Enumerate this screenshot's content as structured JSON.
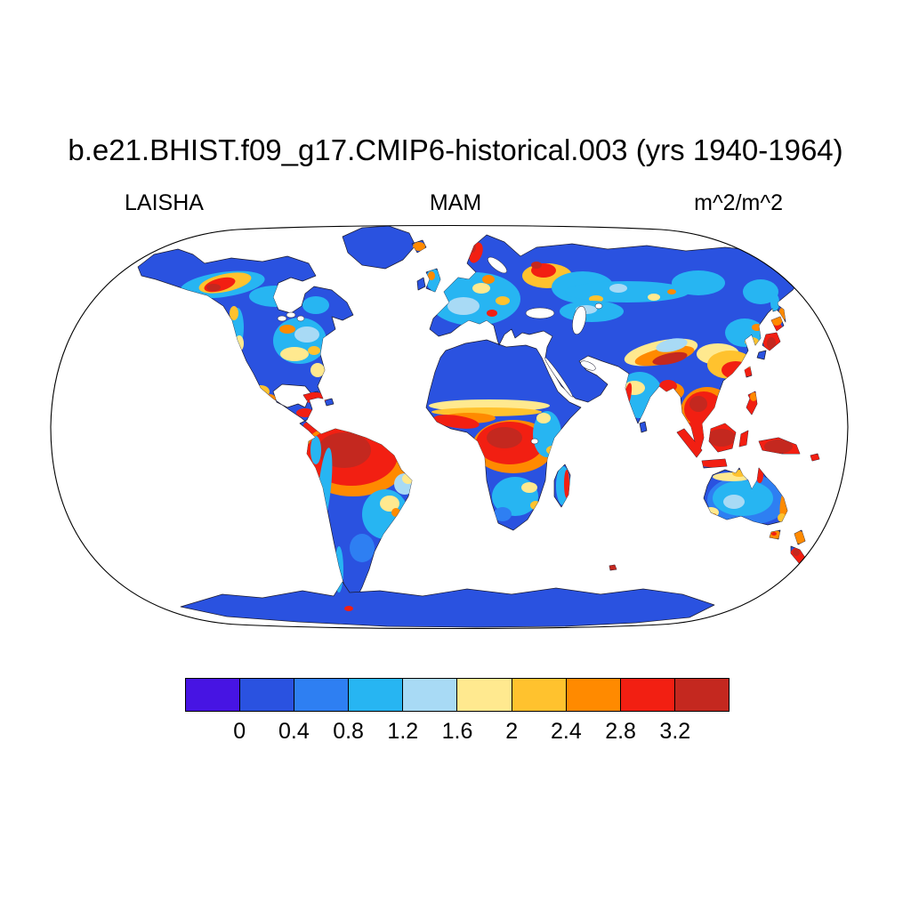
{
  "title": "b.e21.BHIST.f09_g17.CMIP6-historical.003 (yrs 1940-1964)",
  "labels": {
    "left": "LAISHA",
    "center": "MAM",
    "right": "m^2/m^2"
  },
  "chart_data": {
    "type": "heatmap",
    "title": "b.e21.BHIST.f09_g17.CMIP6-historical.003 (yrs 1940-1964)",
    "variable": "LAISHA",
    "season": "MAM",
    "units": "m^2/m^2",
    "projection": "Robinson world map, white ocean, black coastlines",
    "colorbar": {
      "orientation": "horizontal",
      "tick_labels": [
        "0",
        "0.4",
        "0.8",
        "1.2",
        "1.6",
        "2",
        "2.4",
        "2.8",
        "3.2"
      ],
      "levels": [
        0,
        0.4,
        0.8,
        1.2,
        1.6,
        2,
        2.4,
        2.8,
        3.2
      ],
      "colors": [
        "#4714e3",
        "#2a52e0",
        "#2e7ff2",
        "#27b5f2",
        "#a8daf5",
        "#ffe98f",
        "#ffc22e",
        "#ff8a00",
        "#f21f12",
        "#c4281f"
      ]
    },
    "map_regions": [
      {
        "region": "Amazon Basin",
        "value_m2_per_m2": "> 3.2"
      },
      {
        "region": "Congo Basin",
        "value_m2_per_m2": "> 3.2"
      },
      {
        "region": "Maritime Continent (Sumatra, Java, Borneo, New Guinea)",
        "value_m2_per_m2": "> 3.2"
      },
      {
        "region": "Southeast Asia and southern China",
        "value_m2_per_m2": "2.4 - 3.2"
      },
      {
        "region": "Central America and Caribbean islands",
        "value_m2_per_m2": "2.8 - 3.2"
      },
      {
        "region": "Western Canada boreal belt",
        "value_m2_per_m2": "1.6 - 3.2"
      },
      {
        "region": "Eastern North America",
        "value_m2_per_m2": "0.8 - 1.6"
      },
      {
        "region": "Europe (red spots Norway coast, Alps)",
        "value_m2_per_m2": "0.8 - 2.8"
      },
      {
        "region": "Sahara, Arabia, central Asia deserts",
        "value_m2_per_m2": "0 - 0.4"
      },
      {
        "region": "Siberia and high-latitude tundra",
        "value_m2_per_m2": "0.4 - 0.8"
      },
      {
        "region": "Greenland and Antarctica",
        "value_m2_per_m2": "0 - 0.4"
      },
      {
        "region": "Sahel band and West African coast",
        "value_m2_per_m2": "1.6 - 3.2"
      },
      {
        "region": "East and southern Africa",
        "value_m2_per_m2": "0.8 - 1.6"
      },
      {
        "region": "Madagascar east coast",
        "value_m2_per_m2": "2.8 - 3.2"
      },
      {
        "region": "Himalaya / Tibetan Plateau rim",
        "value_m2_per_m2": "2 - 3.2"
      },
      {
        "region": "India",
        "value_m2_per_m2": "0.8 - 1.6"
      },
      {
        "region": "Japan",
        "value_m2_per_m2": "2.4 - 3.2"
      },
      {
        "region": "Australia interior",
        "value_m2_per_m2": "0.4 - 1.2"
      },
      {
        "region": "Eastern Australia coast, Tasmania, New Zealand",
        "value_m2_per_m2": "2 - 3.2"
      },
      {
        "region": "Southern Brazil",
        "value_m2_per_m2": "0.8 - 2"
      }
    ]
  }
}
